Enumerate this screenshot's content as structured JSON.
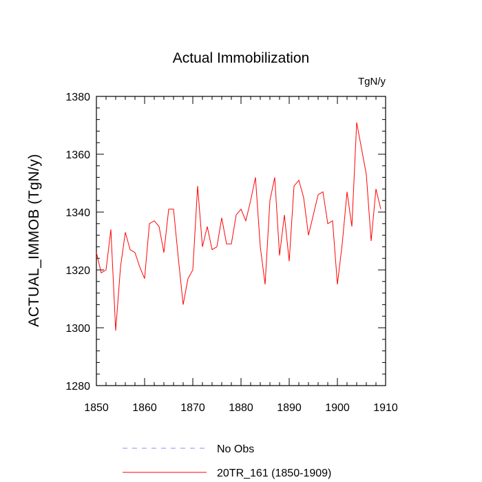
{
  "chart_data": {
    "type": "line",
    "title": "Actual Immobilization",
    "units_label": "TgN/y",
    "ylabel": "ACTUAL_IMMOB  (TgN/y)",
    "xlabel": "",
    "xlim": [
      1850,
      1910
    ],
    "ylim": [
      1280,
      1380
    ],
    "x_ticks": [
      1850,
      1860,
      1870,
      1880,
      1890,
      1900,
      1910
    ],
    "y_ticks": [
      1280,
      1300,
      1320,
      1340,
      1360,
      1380
    ],
    "legend_position": "bottom",
    "series": [
      {
        "name": "No Obs",
        "color": "#8a8aff",
        "style": "dashed",
        "x": [],
        "values": []
      },
      {
        "name": "20TR_161 (1850-1909)",
        "color": "#ff0000",
        "style": "solid",
        "x": [
          1850,
          1851,
          1852,
          1853,
          1854,
          1855,
          1856,
          1857,
          1858,
          1859,
          1860,
          1861,
          1862,
          1863,
          1864,
          1865,
          1866,
          1867,
          1868,
          1869,
          1870,
          1871,
          1872,
          1873,
          1874,
          1875,
          1876,
          1877,
          1878,
          1879,
          1880,
          1881,
          1882,
          1883,
          1884,
          1885,
          1886,
          1887,
          1888,
          1889,
          1890,
          1891,
          1892,
          1893,
          1894,
          1895,
          1896,
          1897,
          1898,
          1899,
          1900,
          1901,
          1902,
          1903,
          1904,
          1905,
          1906,
          1907,
          1908,
          1909
        ],
        "values": [
          1326,
          1319,
          1320,
          1334,
          1299,
          1321,
          1333,
          1327,
          1326,
          1321,
          1317,
          1336,
          1337,
          1335,
          1326,
          1341,
          1341,
          1324,
          1308,
          1317,
          1320,
          1349,
          1328,
          1335,
          1327,
          1328,
          1338,
          1329,
          1329,
          1339,
          1341,
          1337,
          1344,
          1352,
          1328,
          1315,
          1344,
          1352,
          1325,
          1339,
          1323,
          1349,
          1351,
          1345,
          1332,
          1339,
          1346,
          1347,
          1336,
          1337,
          1315,
          1329,
          1347,
          1335,
          1371,
          1362,
          1353,
          1330,
          1348,
          1341
        ]
      }
    ]
  }
}
